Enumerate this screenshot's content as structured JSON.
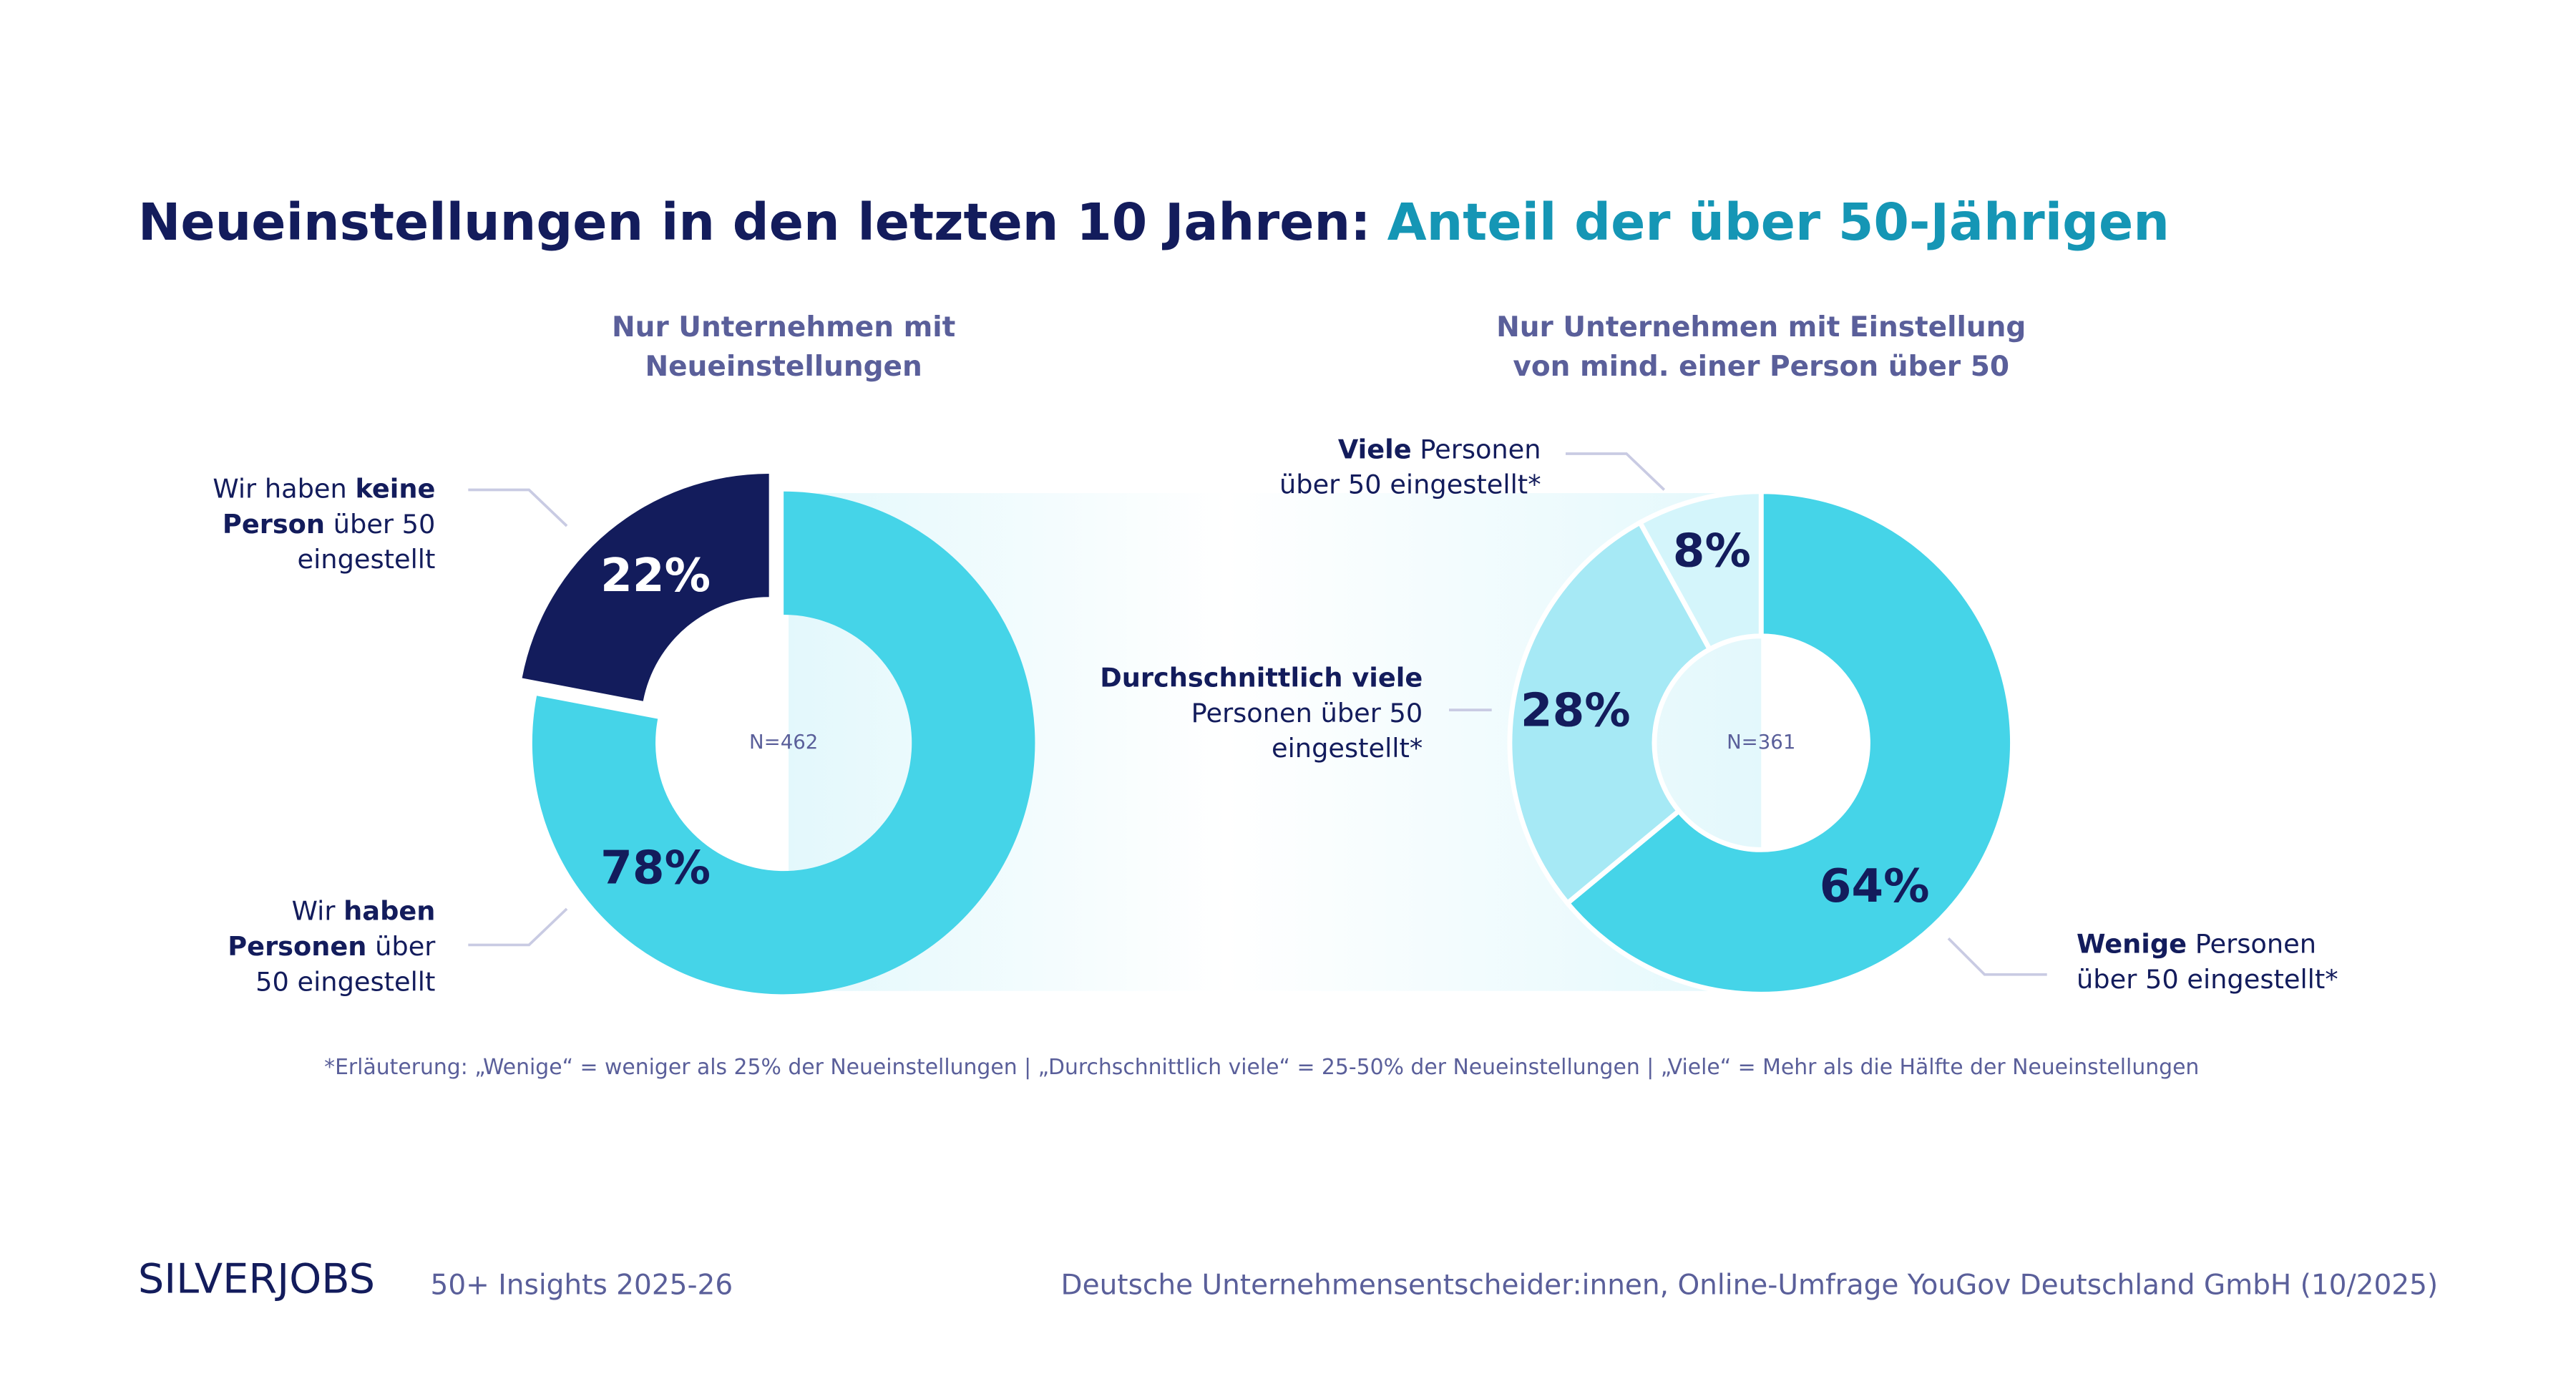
{
  "header": {
    "title": "Neueinstellungen in den letzten 10 Jahren:",
    "title_accent": "Anteil der über 50-Jährigen"
  },
  "chart_data": [
    {
      "type": "donut",
      "subtitle": [
        "Nur Unternehmen mit",
        "Neueinstellungen"
      ],
      "n_label": "N=462",
      "categories": [
        [
          [
            {
              "text": "Wir "
            },
            {
              "text": "haben",
              "bold": true
            }
          ],
          [
            {
              "text": "Personen",
              "bold": true
            },
            {
              "text": " über"
            }
          ],
          [
            {
              "text": "50 eingestellt"
            }
          ]
        ],
        [
          [
            {
              "text": "Wir haben "
            },
            {
              "text": "keine",
              "bold": true
            }
          ],
          [
            {
              "text": "Person",
              "bold": true
            },
            {
              "text": " über 50"
            }
          ],
          [
            {
              "text": "eingestellt"
            }
          ]
        ]
      ],
      "values": [
        78,
        22
      ],
      "value_labels": [
        "78%",
        "22%"
      ],
      "colors": [
        "#45d4e8",
        "#131c5c"
      ],
      "label_colors": [
        "#131c5c",
        "#ffffff"
      ]
    },
    {
      "type": "donut",
      "subtitle": [
        "Nur Unternehmen mit Einstellung",
        "von mind. einer Person über 50"
      ],
      "n_label": "N=361",
      "categories": [
        [
          [
            {
              "text": "Wenige",
              "bold": true
            },
            {
              "text": " Personen"
            }
          ],
          [
            {
              "text": "über 50 eingestellt*"
            }
          ]
        ],
        [
          [
            {
              "text": "Durchschnittlich viele",
              "bold": true
            }
          ],
          [
            {
              "text": "Personen über 50"
            }
          ],
          [
            {
              "text": "eingestellt*"
            }
          ]
        ],
        [
          [
            {
              "text": "Viele",
              "bold": true
            },
            {
              "text": " Personen"
            }
          ],
          [
            {
              "text": "über 50 eingestellt*"
            }
          ]
        ]
      ],
      "values": [
        64,
        28,
        8
      ],
      "value_labels": [
        "64%",
        "28%",
        "8%"
      ],
      "colors": [
        "#45d4e8",
        "#a6e9f5",
        "#d4f5fb"
      ],
      "label_colors": [
        "#131c5c",
        "#131c5c",
        "#131c5c"
      ]
    }
  ],
  "footnote": "*Erläuterung: „Wenige“ = weniger als 25% der Neueinstellungen | „Durchschnittlich viele“ = 25-50% der Neueinstellungen | „Viele“ = Mehr als die Hälfte der Neueinstellungen",
  "footer": {
    "brand": "SILVERJOBS",
    "edition": "50+ Insights 2025-26",
    "source": "Deutsche Unternehmensentscheider:innen, Online-Umfrage YouGov Deutschland GmbH (10/2025)"
  }
}
